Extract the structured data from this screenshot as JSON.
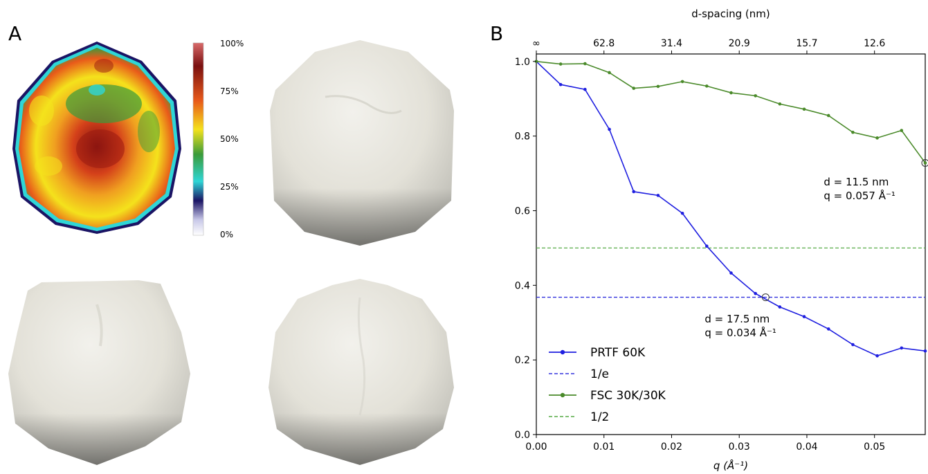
{
  "panel_a": {
    "letter": "A",
    "colorbar": {
      "tick_labels": [
        "100%",
        "75%",
        "50%",
        "25%",
        "0%"
      ],
      "colors": [
        "#f0f0f8",
        "#1b1464",
        "#2fd6d6",
        "#3a9b3a",
        "#f4e21c",
        "#e8591a",
        "#7a1010",
        "#c85a5a"
      ]
    },
    "render_colors": {
      "surface_light": "#ebe9e1",
      "surface_dark": "#8d8d8b"
    }
  },
  "panel_b": {
    "letter": "B"
  },
  "chart_data": {
    "type": "line",
    "xlabel": "q  (Å⁻¹)",
    "ylabel": "",
    "top_xlabel": "d-spacing (nm)",
    "xlim": [
      0.0,
      0.0575
    ],
    "ylim": [
      0.0,
      1.02
    ],
    "x_ticks": [
      0.0,
      0.01,
      0.02,
      0.03,
      0.04,
      0.05
    ],
    "x_tick_labels": [
      "0.00",
      "0.01",
      "0.02",
      "0.03",
      "0.04",
      "0.05"
    ],
    "y_ticks": [
      0.0,
      0.2,
      0.4,
      0.6,
      0.8,
      1.0
    ],
    "y_tick_labels": [
      "0.0",
      "0.2",
      "0.4",
      "0.6",
      "0.8",
      "1.0"
    ],
    "top_ticks_q": [
      0.0,
      0.01,
      0.02,
      0.03,
      0.04,
      0.05
    ],
    "top_tick_labels": [
      "∞",
      "62.8",
      "31.4",
      "20.9",
      "15.7",
      "12.6"
    ],
    "grid": false,
    "legend_position": "lower-left",
    "series": [
      {
        "name": "PRTF 60K",
        "color": "#1f1fe0",
        "style": "solid-marker",
        "x": [
          0.0,
          0.0036,
          0.0072,
          0.0108,
          0.0144,
          0.018,
          0.0216,
          0.0252,
          0.0288,
          0.0324,
          0.036,
          0.0396,
          0.0432,
          0.0468,
          0.0504,
          0.054,
          0.0575
        ],
        "y": [
          1.0,
          0.938,
          0.925,
          0.818,
          0.651,
          0.641,
          0.593,
          0.505,
          0.433,
          0.378,
          0.342,
          0.316,
          0.283,
          0.241,
          0.211,
          0.232,
          0.224
        ]
      },
      {
        "name": "1/e",
        "color": "#3333dd",
        "style": "dashed",
        "y_const": 0.368
      },
      {
        "name": "FSC 30K/30K",
        "color": "#4a8a2a",
        "style": "solid-marker",
        "x": [
          0.0,
          0.0036,
          0.0072,
          0.0108,
          0.0144,
          0.018,
          0.0216,
          0.0252,
          0.0288,
          0.0324,
          0.036,
          0.0396,
          0.0432,
          0.0468,
          0.0504,
          0.054,
          0.0575
        ],
        "y": [
          1.0,
          0.993,
          0.994,
          0.97,
          0.928,
          0.933,
          0.946,
          0.934,
          0.916,
          0.908,
          0.886,
          0.872,
          0.855,
          0.81,
          0.795,
          0.815,
          0.728
        ]
      },
      {
        "name": "1/2",
        "color": "#55aa44",
        "style": "dashed",
        "y_const": 0.5
      }
    ],
    "annotations": [
      {
        "x": 0.0339,
        "y": 0.368,
        "line1": "d = 17.5 nm",
        "line2": "q = 0.034  Å⁻¹",
        "color": "#1f1fe0",
        "text_x": 0.0249,
        "text_y": 0.3
      },
      {
        "x": 0.0575,
        "y": 0.728,
        "line1": "d = 11.5 nm",
        "line2": "q = 0.057  Å⁻¹",
        "color": "#4a8a2a",
        "text_x": 0.0425,
        "text_y": 0.668
      }
    ]
  }
}
